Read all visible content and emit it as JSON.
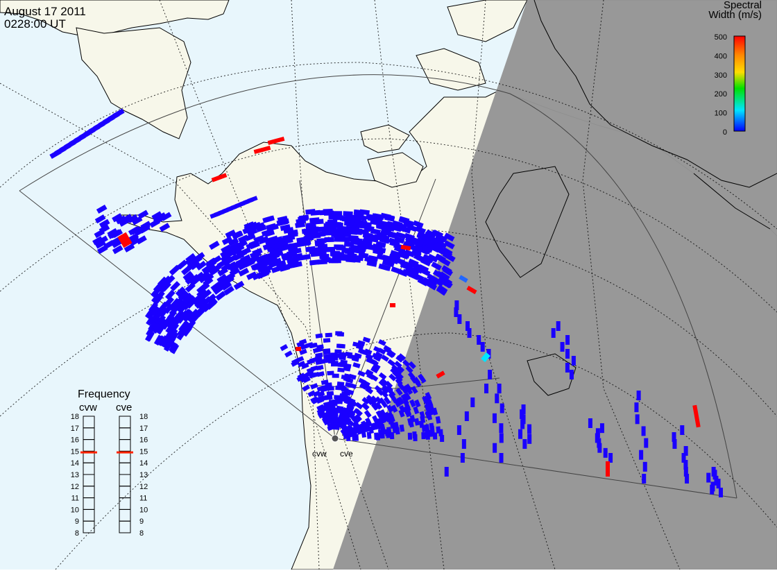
{
  "header": {
    "date": "August 17 2011",
    "time": "0228:00 UT"
  },
  "colorbar": {
    "title_line1": "Spectral",
    "title_line2": "Width (m/s)",
    "ticks": [
      "500",
      "400",
      "300",
      "200",
      "100",
      "0"
    ],
    "range": [
      0,
      500
    ],
    "colors": [
      "#0000ff",
      "#00e5ff",
      "#00e000",
      "#ffdd00",
      "#ff8800",
      "#ff0000"
    ]
  },
  "frequency": {
    "title": "Frequency",
    "left_label": "cvw",
    "right_label": "cve",
    "ticks": [
      "18",
      "17",
      "16",
      "15",
      "14",
      "13",
      "12",
      "11",
      "10",
      "9",
      "8"
    ],
    "range_mhz": [
      8,
      18
    ],
    "cvw_value": 14.9,
    "cve_value": 14.9,
    "marker_color": "#ff2200"
  },
  "radars": {
    "west_label": "cvw",
    "east_label": "cve"
  },
  "colors": {
    "ocean": "#e8f6fc",
    "land": "#f7f7ea",
    "night": "#959595",
    "echo": "#1a00ff",
    "echo_high": "#ff0000"
  }
}
